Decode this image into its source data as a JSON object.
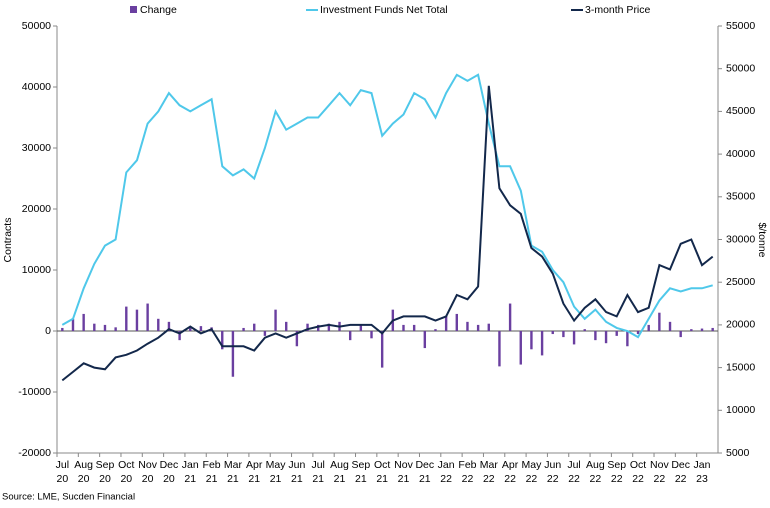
{
  "chart_data": {
    "type": "combo",
    "source": "Source: LME, Sucden Financial",
    "y_label": "Contracts",
    "y2_label": "$/tonne",
    "categories": [
      "Jul 20",
      null,
      "Aug 20",
      null,
      "Sep 20",
      null,
      "Oct 20",
      null,
      "Nov 20",
      null,
      "Dec 20",
      null,
      "Jan 21",
      null,
      "Feb 21",
      null,
      "Mar 21",
      null,
      "Apr 21",
      null,
      "May 21",
      null,
      "Jun 21",
      null,
      "Jul 21",
      null,
      "Aug 21",
      null,
      "Sep 21",
      null,
      "Oct 21",
      null,
      "Nov 21",
      null,
      "Dec 21",
      null,
      "Jan 22",
      null,
      "Feb 22",
      null,
      "Mar 22",
      null,
      "Apr 22",
      null,
      "May 22",
      null,
      "Jun 22",
      null,
      "Jul 22",
      null,
      "Aug 22",
      null,
      "Sep 22",
      null,
      "Oct 22",
      null,
      "Nov 22",
      null,
      "Dec 22",
      null,
      "Jan 23",
      null
    ],
    "ylim": [
      -20000,
      50000
    ],
    "yticks": [
      -20000,
      -10000,
      0,
      10000,
      20000,
      30000,
      40000,
      50000
    ],
    "y2lim": [
      5000,
      55000
    ],
    "y2ticks": [
      5000,
      10000,
      15000,
      20000,
      25000,
      30000,
      35000,
      40000,
      45000,
      50000,
      55000
    ],
    "series": [
      {
        "name": "Change",
        "kind": "bar",
        "color": "#6a3fa0",
        "values": [
          500,
          2000,
          2800,
          1200,
          1000,
          600,
          4000,
          3500,
          4500,
          2000,
          1500,
          -1500,
          500,
          800,
          600,
          -3000,
          -7500,
          500,
          1200,
          -800,
          3500,
          1500,
          -2500,
          1200,
          1000,
          1200,
          1500,
          -1500,
          1000,
          -1200,
          -6000,
          3500,
          1000,
          1000,
          -2800,
          300,
          2500,
          2800,
          1500,
          1000,
          1200,
          -5800,
          4500,
          -5500,
          -3000,
          -4000,
          -500,
          -1000,
          -2200,
          300,
          -1500,
          -2000,
          -800,
          -2500,
          -500,
          1000,
          3000,
          1500,
          -1000,
          300,
          400,
          500
        ]
      },
      {
        "name": "Investment Funds Net Total",
        "kind": "line",
        "color": "#4fc8ea",
        "values": [
          1000,
          2000,
          7000,
          11000,
          14000,
          15000,
          26000,
          28000,
          34000,
          36000,
          39000,
          37000,
          36000,
          37000,
          38000,
          27000,
          25500,
          26500,
          25000,
          30000,
          36000,
          33000,
          34000,
          35000,
          35000,
          37000,
          39000,
          37000,
          39500,
          39000,
          32000,
          34000,
          35500,
          39000,
          38000,
          35000,
          39000,
          42000,
          41000,
          42000,
          34000,
          27000,
          27000,
          23000,
          14000,
          13000,
          10000,
          8000,
          4000,
          2000,
          3500,
          1500,
          500,
          0,
          -1000,
          2000,
          5000,
          7000,
          6500,
          7000,
          7000,
          7500
        ]
      },
      {
        "name": "3-month Price",
        "kind": "line",
        "axis": "y2",
        "color": "#13284b",
        "values": [
          13500,
          14500,
          15500,
          15000,
          14800,
          16200,
          16500,
          17000,
          17800,
          18500,
          19500,
          19000,
          19800,
          19000,
          19500,
          17500,
          17500,
          17500,
          17000,
          18500,
          19000,
          18500,
          19000,
          19500,
          19800,
          20000,
          19800,
          20000,
          20000,
          20000,
          19000,
          20500,
          21000,
          21000,
          21000,
          20500,
          21000,
          23500,
          23000,
          24500,
          48000,
          36000,
          34000,
          33000,
          29000,
          28000,
          26000,
          22500,
          20500,
          22000,
          23000,
          21500,
          21000,
          23500,
          21500,
          22000,
          27000,
          26500,
          29500,
          30000,
          27000,
          28000
        ]
      }
    ]
  }
}
